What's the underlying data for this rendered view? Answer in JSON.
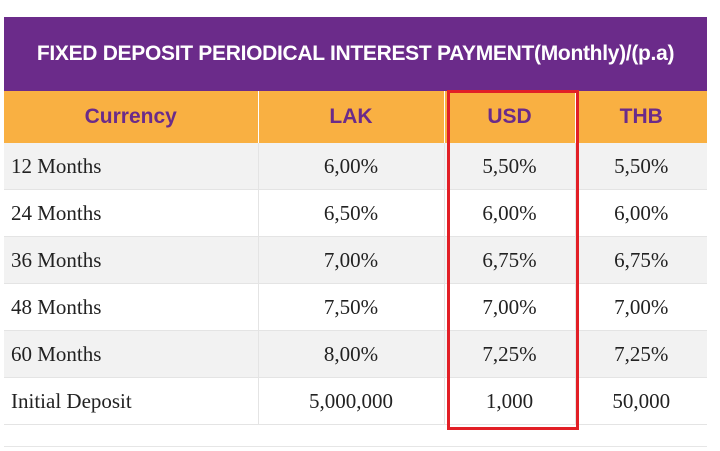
{
  "title": "FIXED DEPOSIT PERIODICAL INTEREST PAYMENT(Monthly)/(p.a)",
  "headers": [
    "Currency",
    "LAK",
    "USD",
    "THB"
  ],
  "rows": [
    [
      "12 Months",
      "6,00%",
      "5,50%",
      "5,50%"
    ],
    [
      "24 Months",
      "6,50%",
      "6,00%",
      "6,00%"
    ],
    [
      "36 Months",
      "7,00%",
      "6,75%",
      "6,75%"
    ],
    [
      "48 Months",
      "7,50%",
      "7,00%",
      "7,00%"
    ],
    [
      "60 Months",
      "8,00%",
      "7,25%",
      "7,25%"
    ],
    [
      "Initial Deposit",
      "5,000,000",
      "1,000",
      "50,000"
    ]
  ],
  "highlighted_column": "USD",
  "colors": {
    "title_bg": "#6b2b8a",
    "header_bg": "#f9b042",
    "header_text": "#6b2b8a",
    "highlight": "#e21f26"
  }
}
